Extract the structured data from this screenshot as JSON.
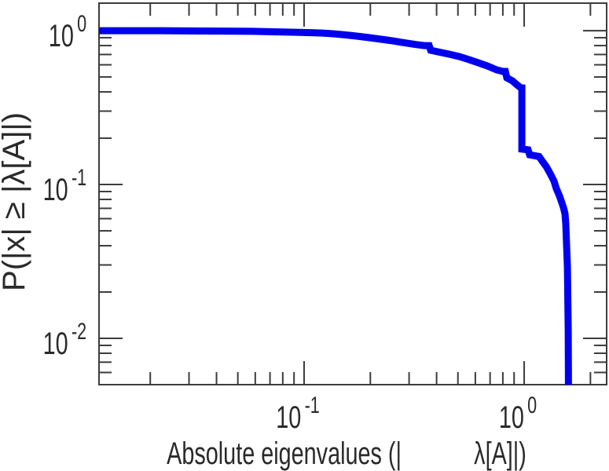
{
  "figure": {
    "background": "#ffffff"
  },
  "chart_data": {
    "type": "line",
    "subtype": "empirical-ccdf-step-curve-loglog",
    "title": "",
    "xlabel": "Absolute eigenvalues (| λ[A]|)",
    "xlabel_parts": [
      "Absolute eigenvalues (|",
      "λ[A]|)"
    ],
    "ylabel": "P(|x| ≥ |λ[A]|)",
    "grid": false,
    "legend": "none",
    "frame": true,
    "colors": {
      "curve": "#0000ee",
      "axis": "#3c3c3c",
      "text": "#2a2a2a",
      "background": "#ffffff"
    },
    "x_axis": {
      "scale": "log",
      "min": 0.0117,
      "max": 2.37,
      "major": [
        {
          "value": 0.1,
          "base": "10",
          "exp": "-1"
        },
        {
          "value": 1,
          "base": "10",
          "exp": "0"
        }
      ],
      "minor": [
        0.02,
        0.03,
        0.04,
        0.05,
        0.06,
        0.07,
        0.08,
        0.09,
        0.2,
        0.3,
        0.4,
        0.5,
        0.6,
        0.7,
        0.8,
        0.9,
        2
      ]
    },
    "y_axis": {
      "scale": "log",
      "min": 0.005,
      "max": 1.51,
      "major": [
        {
          "value": 1,
          "base": "10",
          "exp": "0"
        },
        {
          "value": 0.1,
          "base": "10",
          "exp": "-1"
        },
        {
          "value": 0.01,
          "base": "10",
          "exp": "-2"
        }
      ],
      "minor": [
        0.9,
        0.8,
        0.7,
        0.6,
        0.5,
        0.4,
        0.3,
        0.2,
        0.09,
        0.08,
        0.07,
        0.06,
        0.05,
        0.04,
        0.03,
        0.02,
        0.009,
        0.008,
        0.007,
        0.006,
        0.005
      ]
    },
    "series": [
      {
        "name": "absolute-eigenvalue-ccdf",
        "color": "#0000ee",
        "line_width": 9,
        "points": [
          [
            0.0117,
            1.0
          ],
          [
            0.022,
            1.0
          ],
          [
            0.035,
            0.995
          ],
          [
            0.058,
            0.99
          ],
          [
            0.087,
            0.978
          ],
          [
            0.107,
            0.971
          ],
          [
            0.121,
            0.965
          ],
          [
            0.137,
            0.954
          ],
          [
            0.155,
            0.938
          ],
          [
            0.175,
            0.921
          ],
          [
            0.198,
            0.9
          ],
          [
            0.224,
            0.879
          ],
          [
            0.253,
            0.858
          ],
          [
            0.287,
            0.833
          ],
          [
            0.319,
            0.814
          ],
          [
            0.352,
            0.8
          ],
          [
            0.37,
            0.8
          ],
          [
            0.376,
            0.746
          ],
          [
            0.415,
            0.724
          ],
          [
            0.458,
            0.703
          ],
          [
            0.506,
            0.679
          ],
          [
            0.557,
            0.651
          ],
          [
            0.616,
            0.62
          ],
          [
            0.68,
            0.59
          ],
          [
            0.75,
            0.556
          ],
          [
            0.8,
            0.543
          ],
          [
            0.821,
            0.543
          ],
          [
            0.834,
            0.494
          ],
          [
            0.884,
            0.472
          ],
          [
            0.929,
            0.444
          ],
          [
            0.968,
            0.424
          ],
          [
            0.976,
            0.424
          ],
          [
            0.976,
            0.17
          ],
          [
            1.042,
            0.168
          ],
          [
            1.059,
            0.156
          ],
          [
            1.169,
            0.152
          ],
          [
            1.208,
            0.142
          ],
          [
            1.259,
            0.131
          ],
          [
            1.312,
            0.118
          ],
          [
            1.367,
            0.105
          ],
          [
            1.4,
            0.094
          ],
          [
            1.448,
            0.084
          ],
          [
            1.508,
            0.071
          ],
          [
            1.533,
            0.0645
          ],
          [
            1.546,
            0.0555
          ],
          [
            1.572,
            0.029
          ],
          [
            1.585,
            0.0113
          ],
          [
            1.59,
            0.005
          ]
        ]
      }
    ]
  }
}
